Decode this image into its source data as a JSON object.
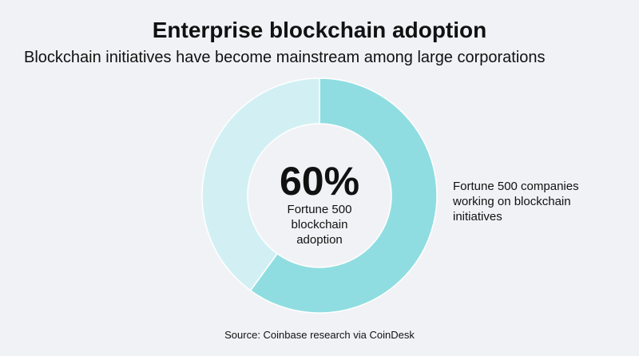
{
  "chart_data": {
    "type": "donut",
    "title": "Enterprise blockchain adoption",
    "subtitle": "Blockchain initiatives have become mainstream among large corporations",
    "categories": [
      "Fortune 500 companies working on blockchain initiatives",
      null
    ],
    "values": [
      60,
      40
    ],
    "value_labels": [
      "60%",
      null
    ],
    "colors": [
      "#8fdde1",
      "#d2f0f3"
    ],
    "center_label": "Fortune 500 blockchain adoption",
    "source": "Source: Coinbase research via CoinDesk"
  }
}
